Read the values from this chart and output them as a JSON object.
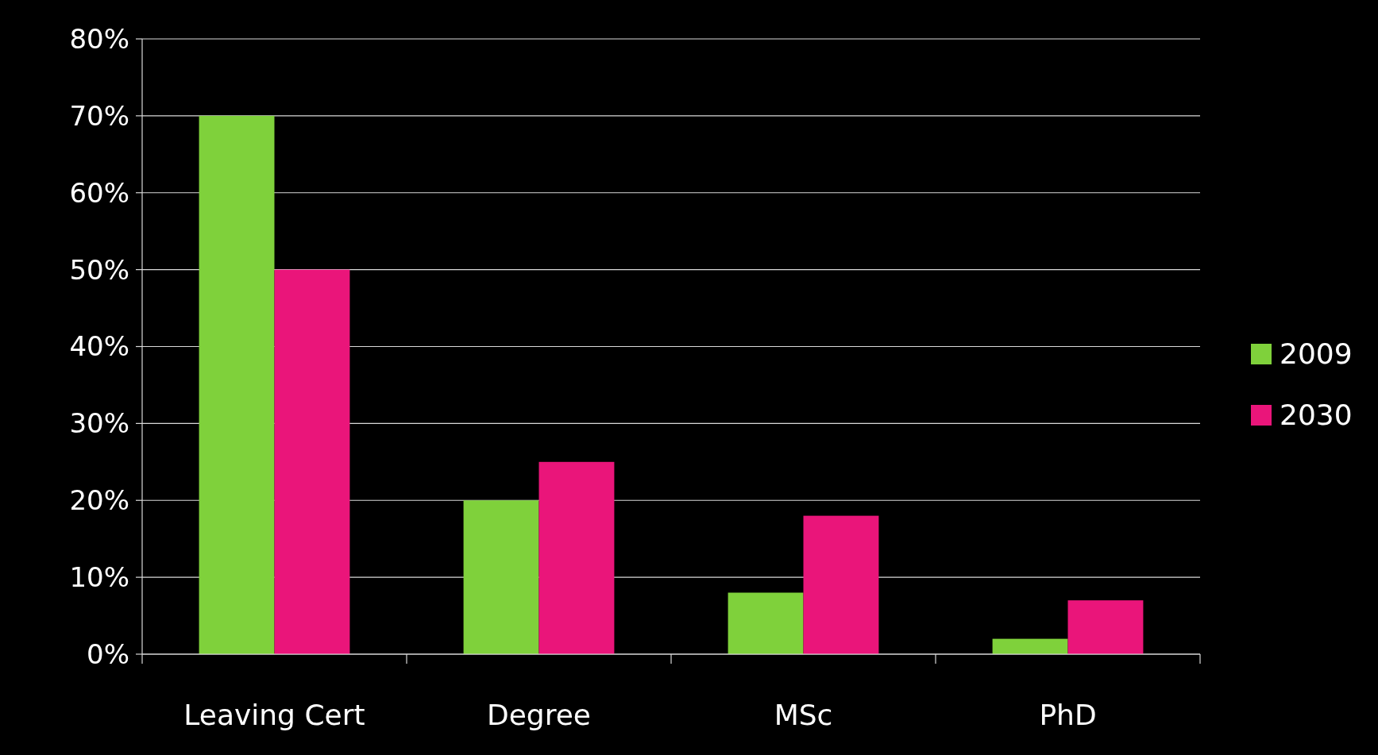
{
  "chart_data": {
    "type": "bar",
    "categories": [
      "Leaving Cert",
      "Degree",
      "MSc",
      "PhD"
    ],
    "series": [
      {
        "name": "2009",
        "color": "#7fd13b",
        "values": [
          70,
          20,
          8,
          2
        ]
      },
      {
        "name": "2030",
        "color": "#ea157a",
        "values": [
          50,
          25,
          18,
          7
        ]
      }
    ],
    "ylim": [
      0,
      80
    ],
    "yticks": [
      {
        "value": 0,
        "label": "0%"
      },
      {
        "value": 10,
        "label": "10%"
      },
      {
        "value": 20,
        "label": "20%"
      },
      {
        "value": 30,
        "label": "30%"
      },
      {
        "value": 40,
        "label": "40%"
      },
      {
        "value": 50,
        "label": "50%"
      },
      {
        "value": 60,
        "label": "60%"
      },
      {
        "value": 70,
        "label": "70%"
      },
      {
        "value": 80,
        "label": "80%"
      }
    ],
    "grid": "y",
    "legend": "right"
  }
}
